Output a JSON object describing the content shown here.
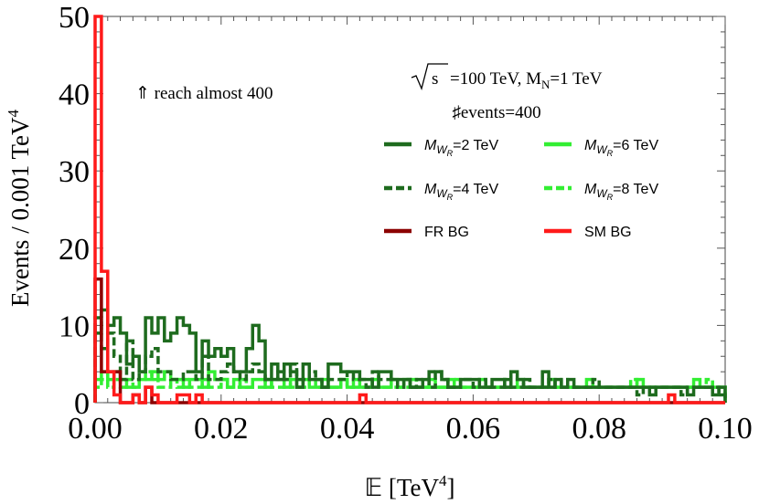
{
  "chart_data": {
    "type": "line",
    "subtype": "step-histogram",
    "xlabel_prefix": "𝔼 [TeV",
    "xlabel_sup": "4",
    "xlabel_suffix": "]",
    "ylabel_prefix": "Events / 0.001 TeV",
    "ylabel_sup": "4",
    "xlim": [
      0,
      0.1
    ],
    "ylim": [
      0,
      50
    ],
    "xticks": [
      0.0,
      0.02,
      0.04,
      0.06,
      0.08,
      0.1
    ],
    "xtick_labels": [
      "0.00",
      "0.02",
      "0.04",
      "0.06",
      "0.08",
      "0.10"
    ],
    "yticks": [
      0,
      10,
      20,
      30,
      40,
      50
    ],
    "ytick_labels": [
      "0",
      "10",
      "20",
      "30",
      "40",
      "50"
    ],
    "bin_width": 0.001,
    "annotations": {
      "reach": "⇑ reach almost 400",
      "energy_prefix": "=100 TeV, M",
      "energy_sub": "N",
      "energy_suffix": "=1 TeV",
      "sqrt_s": "s",
      "events": "♯events=400"
    },
    "series": [
      {
        "name": "M_WR=2 TeV",
        "label_main": "M",
        "label_sub": "W",
        "label_subsub": "R",
        "label_tail": "=2 TeV",
        "color": "#1e6b1e",
        "dashed": false,
        "values": [
          9,
          12,
          10,
          11,
          9,
          5,
          6,
          4,
          11,
          9,
          11,
          8,
          9,
          11,
          10,
          9,
          4,
          8,
          6,
          7,
          6,
          7,
          4,
          4,
          7,
          10,
          8,
          3,
          5,
          3,
          5,
          4,
          2,
          5,
          3,
          3,
          2,
          5,
          5,
          4,
          4,
          4,
          3,
          3,
          2,
          4,
          4,
          3,
          3,
          3,
          2,
          2,
          3,
          4,
          4,
          3,
          2,
          2,
          3,
          3,
          3,
          2,
          2,
          3,
          3,
          2,
          4,
          3,
          2,
          2,
          2,
          4,
          2,
          3,
          2,
          3,
          2,
          2,
          2,
          2,
          2,
          2,
          2,
          2,
          2,
          2,
          2,
          2,
          1,
          2,
          2,
          2,
          2,
          2,
          1,
          2,
          2,
          2,
          1,
          2
        ]
      },
      {
        "name": "M_WR=4 TeV",
        "label_main": "M",
        "label_sub": "W",
        "label_subsub": "R",
        "label_tail": "=4 TeV",
        "color": "#1e6b1e",
        "dashed": true,
        "values": [
          11,
          7,
          9,
          6,
          3,
          8,
          3,
          4,
          6,
          7,
          4,
          4,
          3,
          3,
          4,
          4,
          3,
          6,
          3,
          3,
          4,
          5,
          4,
          3,
          4,
          5,
          4,
          3,
          3,
          4,
          3,
          5,
          3,
          3,
          4,
          3,
          2,
          3,
          3,
          3,
          4,
          3,
          3,
          2,
          4,
          3,
          3,
          3,
          2,
          3,
          2,
          3,
          3,
          2,
          4,
          3,
          2,
          2,
          3,
          3,
          2,
          3,
          2,
          2,
          2,
          3,
          2,
          2,
          3,
          2,
          2,
          2,
          3,
          2,
          2,
          2,
          2,
          2,
          2,
          3,
          2,
          2,
          2,
          2,
          2,
          2,
          1,
          2,
          2,
          2,
          2,
          2,
          2,
          1,
          2,
          2,
          2,
          2,
          2,
          1
        ]
      },
      {
        "name": "M_WR=6 TeV",
        "label_main": "M",
        "label_sub": "W",
        "label_subsub": "R",
        "label_tail": "=6 TeV",
        "color": "#33ee33",
        "dashed": false,
        "values": [
          3,
          4,
          3,
          4,
          3,
          2,
          2,
          3,
          3,
          4,
          3,
          4,
          3,
          3,
          2,
          3,
          3,
          2,
          4,
          3,
          3,
          2,
          3,
          2,
          2,
          3,
          3,
          2,
          3,
          3,
          2,
          3,
          2,
          3,
          2,
          2,
          3,
          2,
          2,
          3,
          2,
          3,
          2,
          2,
          3,
          2,
          2,
          3,
          2,
          3,
          2,
          2,
          2,
          3,
          2,
          2,
          3,
          2,
          2,
          2,
          2,
          3,
          2,
          2,
          2,
          2,
          2,
          3,
          2,
          2,
          2,
          2,
          3,
          2,
          2,
          2,
          2,
          2,
          3,
          2,
          2,
          2,
          2,
          2,
          2,
          2,
          3,
          2,
          2,
          2,
          2,
          2,
          2,
          2,
          2,
          3,
          2,
          2,
          2,
          2
        ]
      },
      {
        "name": "M_WR=8 TeV",
        "label_main": "M",
        "label_sub": "W",
        "label_subsub": "R",
        "label_tail": "=8 TeV",
        "color": "#33ee33",
        "dashed": true,
        "values": [
          2,
          3,
          2,
          3,
          2,
          3,
          2,
          3,
          4,
          3,
          2,
          2,
          3,
          2,
          3,
          2,
          2,
          3,
          2,
          2,
          3,
          2,
          2,
          3,
          2,
          2,
          2,
          3,
          2,
          2,
          3,
          2,
          2,
          2,
          3,
          2,
          2,
          2,
          2,
          3,
          2,
          2,
          2,
          2,
          3,
          2,
          2,
          2,
          2,
          2,
          3,
          2,
          2,
          2,
          2,
          2,
          2,
          3,
          2,
          2,
          2,
          2,
          2,
          2,
          2,
          3,
          2,
          2,
          2,
          2,
          2,
          2,
          2,
          2,
          3,
          2,
          2,
          2,
          2,
          2,
          2,
          2,
          2,
          2,
          2,
          3,
          2,
          2,
          2,
          2,
          2,
          2,
          2,
          2,
          2,
          2,
          2,
          3,
          2,
          2
        ]
      },
      {
        "name": "FR BG",
        "label_main": "FR BG",
        "label_sub": "",
        "label_subsub": "",
        "label_tail": "",
        "color": "#8b0000",
        "dashed": false,
        "values": [
          16,
          4,
          4,
          4,
          0,
          0,
          1,
          0,
          2,
          0,
          0,
          0,
          0,
          0,
          0,
          0,
          0,
          0,
          0,
          0,
          0,
          0,
          0,
          0,
          0,
          0,
          0,
          0,
          0,
          0,
          0,
          0,
          0,
          0,
          0,
          0,
          0,
          0,
          0,
          0,
          0,
          0,
          0,
          0,
          0,
          0,
          0,
          0,
          0,
          0,
          0,
          0,
          0,
          0,
          0,
          0,
          0,
          0,
          0,
          0,
          0,
          0,
          0,
          0,
          0,
          0,
          0,
          0,
          0,
          0,
          0,
          0,
          0,
          0,
          0,
          0,
          0,
          0,
          0,
          0,
          0,
          0,
          0,
          0,
          0,
          0,
          0,
          0,
          0,
          0,
          0,
          0,
          0,
          0,
          0,
          0,
          0,
          0,
          0,
          0
        ]
      },
      {
        "name": "SM BG",
        "label_main": "SM BG",
        "label_sub": "",
        "label_subsub": "",
        "label_tail": "",
        "color": "#ff1a1a",
        "dashed": false,
        "values": [
          50,
          17,
          4,
          1,
          0,
          0,
          1,
          0,
          2,
          1,
          0,
          0,
          0,
          1,
          1,
          0,
          1,
          0,
          0,
          0,
          0,
          0,
          0,
          0,
          0,
          0,
          0,
          0,
          0,
          0,
          0,
          0,
          0,
          0,
          0,
          0,
          0,
          0,
          0,
          0,
          0,
          0,
          1,
          0,
          0,
          0,
          0,
          0,
          0,
          0,
          0,
          0,
          0,
          0,
          0,
          0,
          0,
          0,
          0,
          0,
          0,
          0,
          0,
          0,
          0,
          0,
          0,
          0,
          0,
          0,
          0,
          0,
          0,
          0,
          0,
          0,
          0,
          0,
          0,
          0,
          0,
          0,
          0,
          0,
          0,
          0,
          0,
          0,
          0,
          0,
          0,
          1,
          0,
          0,
          0,
          0,
          0,
          0,
          0,
          0
        ]
      }
    ]
  }
}
